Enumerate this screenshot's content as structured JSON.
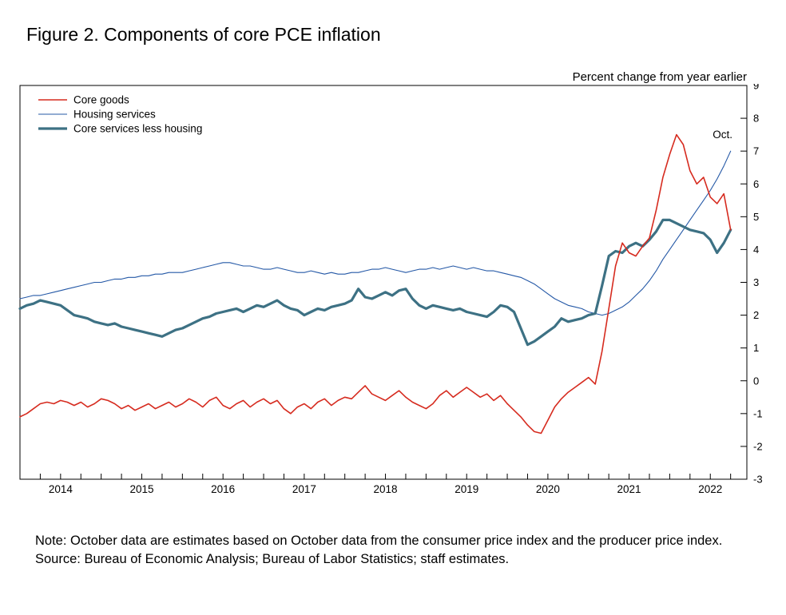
{
  "figure": {
    "title": "Figure 2. Components of core PCE inflation",
    "unit_label": "Percent change from year earlier",
    "note": "Note: October data are estimates based on October data from the consumer price index and the producer price index.",
    "source": "Source: Bureau of Economic Analysis; Bureau of Labor Statistics; staff estimates."
  },
  "chart_data": {
    "type": "line",
    "title": "Figure 2. Components of core PCE inflation",
    "ylabel": "Percent change from year earlier",
    "x_unit": "month",
    "x_start": "2014-01",
    "x_end": "2022-10",
    "x_domain": [
      2014,
      2022.95
    ],
    "ylim": [
      -3,
      9
    ],
    "ytick_step": 1,
    "x_year_labels": [
      2014,
      2015,
      2016,
      2017,
      2018,
      2019,
      2020,
      2021,
      2022
    ],
    "grid": false,
    "legend_position": "top-left",
    "annotation": {
      "label": "Oct.",
      "series": "Housing services",
      "x": "2022-10"
    },
    "series": [
      {
        "name": "Core goods",
        "color": "#d62b1f",
        "width": 1.6,
        "values": [
          -1.1,
          -1.0,
          -0.85,
          -0.7,
          -0.65,
          -0.7,
          -0.6,
          -0.65,
          -0.75,
          -0.65,
          -0.8,
          -0.7,
          -0.55,
          -0.6,
          -0.7,
          -0.85,
          -0.75,
          -0.9,
          -0.8,
          -0.7,
          -0.85,
          -0.75,
          -0.65,
          -0.8,
          -0.7,
          -0.55,
          -0.65,
          -0.8,
          -0.6,
          -0.5,
          -0.75,
          -0.85,
          -0.7,
          -0.6,
          -0.8,
          -0.65,
          -0.55,
          -0.7,
          -0.6,
          -0.85,
          -1.0,
          -0.8,
          -0.7,
          -0.85,
          -0.65,
          -0.55,
          -0.75,
          -0.6,
          -0.5,
          -0.55,
          -0.35,
          -0.15,
          -0.4,
          -0.5,
          -0.6,
          -0.45,
          -0.3,
          -0.5,
          -0.65,
          -0.75,
          -0.85,
          -0.7,
          -0.45,
          -0.3,
          -0.5,
          -0.35,
          -0.2,
          -0.35,
          -0.5,
          -0.4,
          -0.6,
          -0.45,
          -0.7,
          -0.9,
          -1.1,
          -1.35,
          -1.55,
          -1.6,
          -1.2,
          -0.8,
          -0.55,
          -0.35,
          -0.2,
          -0.05,
          0.1,
          -0.1,
          0.9,
          2.2,
          3.5,
          4.2,
          3.9,
          3.8,
          4.1,
          4.35,
          5.2,
          6.2,
          6.9,
          7.5,
          7.2,
          6.4,
          6.0,
          6.2,
          5.6,
          5.4,
          5.7,
          4.6
        ]
      },
      {
        "name": "Housing services",
        "color": "#2458a6",
        "width": 1.1,
        "values": [
          2.5,
          2.55,
          2.6,
          2.6,
          2.65,
          2.7,
          2.75,
          2.8,
          2.85,
          2.9,
          2.95,
          3.0,
          3.0,
          3.05,
          3.1,
          3.1,
          3.15,
          3.15,
          3.2,
          3.2,
          3.25,
          3.25,
          3.3,
          3.3,
          3.3,
          3.35,
          3.4,
          3.45,
          3.5,
          3.55,
          3.6,
          3.6,
          3.55,
          3.5,
          3.5,
          3.45,
          3.4,
          3.4,
          3.45,
          3.4,
          3.35,
          3.3,
          3.3,
          3.35,
          3.3,
          3.25,
          3.3,
          3.25,
          3.25,
          3.3,
          3.3,
          3.35,
          3.4,
          3.4,
          3.45,
          3.4,
          3.35,
          3.3,
          3.35,
          3.4,
          3.4,
          3.45,
          3.4,
          3.45,
          3.5,
          3.45,
          3.4,
          3.45,
          3.4,
          3.35,
          3.35,
          3.3,
          3.25,
          3.2,
          3.15,
          3.05,
          2.95,
          2.8,
          2.65,
          2.5,
          2.4,
          2.3,
          2.25,
          2.2,
          2.1,
          2.05,
          2.0,
          2.05,
          2.15,
          2.25,
          2.4,
          2.6,
          2.8,
          3.05,
          3.35,
          3.7,
          4.0,
          4.3,
          4.6,
          4.9,
          5.2,
          5.5,
          5.8,
          6.15,
          6.55,
          7.0
        ]
      },
      {
        "name": "Core services less housing",
        "color": "#3d7184",
        "width": 3.2,
        "values": [
          2.2,
          2.3,
          2.35,
          2.45,
          2.4,
          2.35,
          2.3,
          2.15,
          2.0,
          1.95,
          1.9,
          1.8,
          1.75,
          1.7,
          1.75,
          1.65,
          1.6,
          1.55,
          1.5,
          1.45,
          1.4,
          1.35,
          1.45,
          1.55,
          1.6,
          1.7,
          1.8,
          1.9,
          1.95,
          2.05,
          2.1,
          2.15,
          2.2,
          2.1,
          2.2,
          2.3,
          2.25,
          2.35,
          2.45,
          2.3,
          2.2,
          2.15,
          2.0,
          2.1,
          2.2,
          2.15,
          2.25,
          2.3,
          2.35,
          2.45,
          2.8,
          2.55,
          2.5,
          2.6,
          2.7,
          2.6,
          2.75,
          2.8,
          2.5,
          2.3,
          2.2,
          2.3,
          2.25,
          2.2,
          2.15,
          2.2,
          2.1,
          2.05,
          2.0,
          1.95,
          2.1,
          2.3,
          2.25,
          2.1,
          1.6,
          1.1,
          1.2,
          1.35,
          1.5,
          1.65,
          1.9,
          1.8,
          1.85,
          1.9,
          2.0,
          2.05,
          2.9,
          3.8,
          3.95,
          3.9,
          4.1,
          4.2,
          4.1,
          4.3,
          4.55,
          4.9,
          4.9,
          4.8,
          4.7,
          4.6,
          4.55,
          4.5,
          4.3,
          3.9,
          4.2,
          4.6
        ]
      }
    ]
  }
}
